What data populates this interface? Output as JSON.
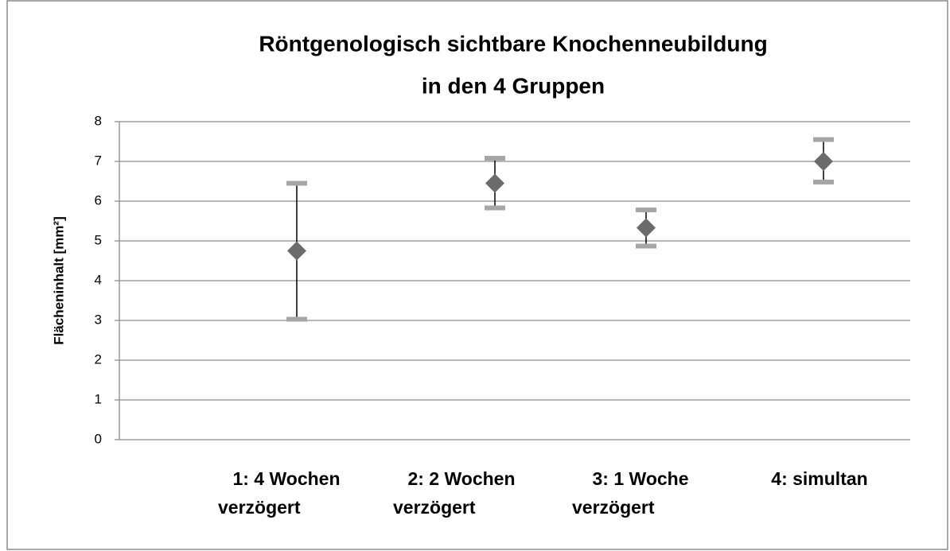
{
  "chart_data": {
    "type": "errorbar",
    "title": [
      "Röntgenologisch sichtbare Knochenneubildung",
      "in den 4 Gruppen"
    ],
    "y_label": "Flächeninhalt [mm²]",
    "categories": [
      [
        "1: 4 Wochen",
        "verzögert"
      ],
      [
        "2: 2 Wochen",
        "verzögert"
      ],
      [
        "3:  1 Woche",
        "verzögert"
      ],
      [
        "4:  simultan"
      ]
    ],
    "values": [
      4.75,
      6.45,
      5.33,
      7.0
    ],
    "high": [
      6.45,
      7.08,
      5.78,
      7.55
    ],
    "low": [
      3.03,
      5.83,
      4.87,
      6.48
    ],
    "color": "#6b6b6b",
    "cap_color": "#a6a6a6",
    "ylim": [
      0,
      8
    ],
    "yticks": [
      0,
      1,
      2,
      3,
      4,
      5,
      6,
      7,
      8
    ],
    "grid": true
  }
}
